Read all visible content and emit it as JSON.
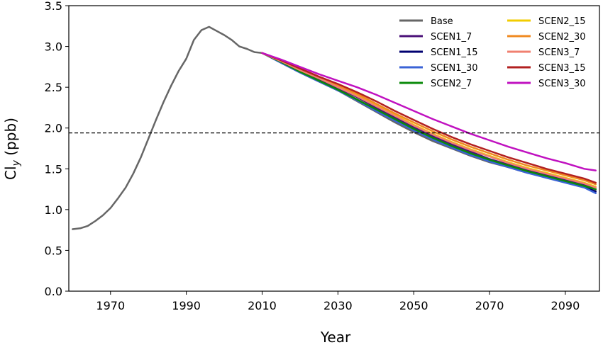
{
  "chart_data": {
    "type": "line",
    "xlabel": "Year",
    "ylabel_main": "Cl",
    "ylabel_sub": "y",
    "ylabel_unit": " (ppb)",
    "xlim": [
      1959,
      2099
    ],
    "ylim": [
      0.0,
      3.5
    ],
    "xticks": [
      1970,
      1990,
      2010,
      2030,
      2050,
      2070,
      2090
    ],
    "yticks": [
      0.0,
      0.5,
      1.0,
      1.5,
      2.0,
      2.5,
      3.0,
      3.5
    ],
    "ytick_labels": [
      "0.0",
      "0.5",
      "1.0",
      "1.5",
      "2.0",
      "2.5",
      "3.0",
      "3.5"
    ],
    "grid": false,
    "legend_placement": "top-right",
    "reference_line": {
      "y": 1.94,
      "style": "dashed",
      "color": "#000000"
    },
    "series": [
      {
        "name": "Base",
        "color": "#666666",
        "x": [
          1960,
          1962,
          1964,
          1966,
          1968,
          1970,
          1972,
          1974,
          1976,
          1978,
          1980,
          1982,
          1984,
          1986,
          1988,
          1990,
          1992,
          1994,
          1996,
          1998,
          2000,
          2002,
          2004,
          2006,
          2008,
          2010,
          2015,
          2020,
          2025,
          2030,
          2035,
          2040,
          2045,
          2050,
          2055,
          2060,
          2065,
          2070,
          2075,
          2080,
          2085,
          2090,
          2095,
          2098
        ],
        "y": [
          0.76,
          0.77,
          0.8,
          0.86,
          0.93,
          1.02,
          1.14,
          1.27,
          1.44,
          1.64,
          1.87,
          2.1,
          2.32,
          2.52,
          2.7,
          2.85,
          3.08,
          3.2,
          3.24,
          3.19,
          3.14,
          3.08,
          3.0,
          2.97,
          2.93,
          2.92,
          2.8,
          2.68,
          2.57,
          2.46,
          2.33,
          2.2,
          2.07,
          1.95,
          1.84,
          1.75,
          1.66,
          1.58,
          1.52,
          1.45,
          1.4,
          1.34,
          1.28,
          1.23
        ]
      },
      {
        "name": "SCEN1_7",
        "color": "#4b1078",
        "x": [
          2010,
          2015,
          2020,
          2025,
          2030,
          2035,
          2040,
          2045,
          2050,
          2055,
          2060,
          2065,
          2070,
          2075,
          2080,
          2085,
          2090,
          2095,
          2098
        ],
        "y": [
          2.92,
          2.82,
          2.7,
          2.6,
          2.49,
          2.38,
          2.25,
          2.13,
          2.01,
          1.9,
          1.8,
          1.71,
          1.62,
          1.55,
          1.48,
          1.42,
          1.36,
          1.3,
          1.25
        ]
      },
      {
        "name": "SCEN1_15",
        "color": "#000070",
        "x": [
          2010,
          2015,
          2020,
          2025,
          2030,
          2035,
          2040,
          2045,
          2050,
          2055,
          2060,
          2065,
          2070,
          2075,
          2080,
          2085,
          2090,
          2095,
          2098
        ],
        "y": [
          2.92,
          2.81,
          2.69,
          2.58,
          2.47,
          2.35,
          2.22,
          2.1,
          1.98,
          1.87,
          1.77,
          1.68,
          1.6,
          1.53,
          1.46,
          1.4,
          1.34,
          1.28,
          1.22
        ]
      },
      {
        "name": "SCEN1_30",
        "color": "#3a63d6",
        "x": [
          2010,
          2015,
          2020,
          2025,
          2030,
          2035,
          2040,
          2045,
          2050,
          2055,
          2060,
          2065,
          2070,
          2075,
          2080,
          2085,
          2090,
          2095,
          2098
        ],
        "y": [
          2.92,
          2.8,
          2.68,
          2.57,
          2.46,
          2.34,
          2.21,
          2.09,
          1.97,
          1.86,
          1.76,
          1.67,
          1.59,
          1.52,
          1.45,
          1.39,
          1.33,
          1.27,
          1.2
        ]
      },
      {
        "name": "SCEN2_7",
        "color": "#0a8a0a",
        "x": [
          2010,
          2015,
          2020,
          2025,
          2030,
          2035,
          2040,
          2045,
          2050,
          2055,
          2060,
          2065,
          2070,
          2075,
          2080,
          2085,
          2090,
          2095,
          2098
        ],
        "y": [
          2.92,
          2.81,
          2.69,
          2.58,
          2.47,
          2.35,
          2.23,
          2.11,
          1.99,
          1.88,
          1.78,
          1.69,
          1.61,
          1.54,
          1.47,
          1.41,
          1.35,
          1.29,
          1.25
        ]
      },
      {
        "name": "SCEN2_15",
        "color": "#f2cc00",
        "x": [
          2010,
          2015,
          2020,
          2025,
          2030,
          2035,
          2040,
          2045,
          2050,
          2055,
          2060,
          2065,
          2070,
          2075,
          2080,
          2085,
          2090,
          2095,
          2098
        ],
        "y": [
          2.92,
          2.82,
          2.71,
          2.61,
          2.51,
          2.4,
          2.28,
          2.16,
          2.04,
          1.93,
          1.83,
          1.74,
          1.66,
          1.58,
          1.51,
          1.45,
          1.39,
          1.33,
          1.28
        ]
      },
      {
        "name": "SCEN2_30",
        "color": "#f08a20",
        "x": [
          2010,
          2015,
          2020,
          2025,
          2030,
          2035,
          2040,
          2045,
          2050,
          2055,
          2060,
          2065,
          2070,
          2075,
          2080,
          2085,
          2090,
          2095,
          2098
        ],
        "y": [
          2.92,
          2.82,
          2.72,
          2.62,
          2.52,
          2.42,
          2.3,
          2.18,
          2.07,
          1.96,
          1.86,
          1.77,
          1.69,
          1.61,
          1.54,
          1.48,
          1.42,
          1.36,
          1.31
        ]
      },
      {
        "name": "SCEN3_7",
        "color": "#f08070",
        "x": [
          2010,
          2015,
          2020,
          2025,
          2030,
          2035,
          2040,
          2045,
          2050,
          2055,
          2060,
          2065,
          2070,
          2075,
          2080,
          2085,
          2090,
          2095,
          2098
        ],
        "y": [
          2.92,
          2.82,
          2.71,
          2.61,
          2.5,
          2.39,
          2.27,
          2.15,
          2.03,
          1.92,
          1.82,
          1.73,
          1.65,
          1.57,
          1.5,
          1.44,
          1.38,
          1.32,
          1.27
        ]
      },
      {
        "name": "SCEN3_15",
        "color": "#b22020",
        "x": [
          2010,
          2015,
          2020,
          2025,
          2030,
          2035,
          2040,
          2045,
          2050,
          2055,
          2060,
          2065,
          2070,
          2075,
          2080,
          2085,
          2090,
          2095,
          2098
        ],
        "y": [
          2.92,
          2.83,
          2.73,
          2.63,
          2.54,
          2.44,
          2.33,
          2.21,
          2.1,
          1.99,
          1.89,
          1.8,
          1.72,
          1.64,
          1.57,
          1.5,
          1.44,
          1.38,
          1.33
        ]
      },
      {
        "name": "SCEN3_30",
        "color": "#c011c0",
        "x": [
          2010,
          2015,
          2020,
          2025,
          2030,
          2035,
          2040,
          2045,
          2050,
          2055,
          2060,
          2065,
          2070,
          2075,
          2080,
          2085,
          2090,
          2095,
          2098
        ],
        "y": [
          2.92,
          2.84,
          2.75,
          2.66,
          2.58,
          2.5,
          2.41,
          2.31,
          2.21,
          2.11,
          2.02,
          1.93,
          1.85,
          1.77,
          1.7,
          1.63,
          1.57,
          1.5,
          1.48
        ]
      }
    ]
  }
}
